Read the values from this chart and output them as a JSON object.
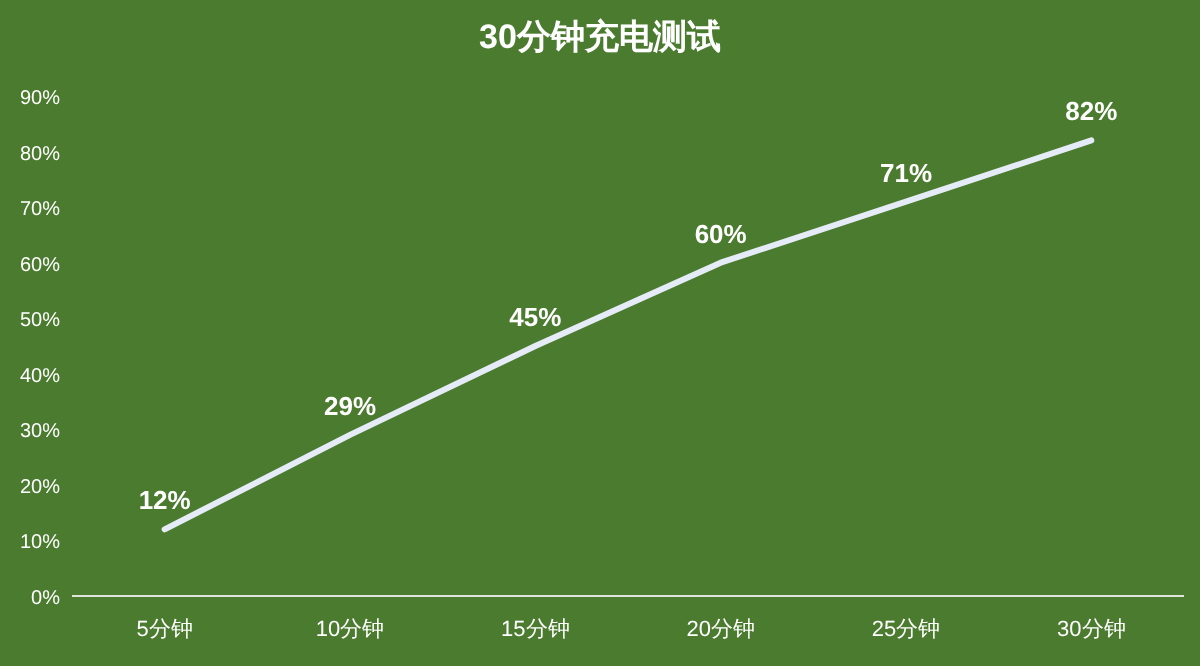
{
  "chart_data": {
    "type": "line",
    "title": "30分钟充电测试",
    "categories": [
      "5分钟",
      "10分钟",
      "15分钟",
      "20分钟",
      "25分钟",
      "30分钟"
    ],
    "series": [
      {
        "color": "#e6ecf7",
        "values": [
          12,
          29,
          45,
          60,
          71,
          82
        ]
      }
    ],
    "ylim": [
      0,
      90
    ],
    "yticks": [
      {
        "value": 0,
        "label": "0%"
      },
      {
        "value": 10,
        "label": "10%"
      },
      {
        "value": 20,
        "label": "20%"
      },
      {
        "value": 30,
        "label": "30%"
      },
      {
        "value": 40,
        "label": "40%"
      },
      {
        "value": 50,
        "label": "50%"
      },
      {
        "value": 60,
        "label": "60%"
      },
      {
        "value": 70,
        "label": "70%"
      },
      {
        "value": 80,
        "label": "80%"
      },
      {
        "value": 90,
        "label": "90%"
      }
    ],
    "value_labels": [
      "12%",
      "29%",
      "45%",
      "60%",
      "71%",
      "82%"
    ],
    "marker": "none",
    "line_style": "solid",
    "grid": false
  }
}
